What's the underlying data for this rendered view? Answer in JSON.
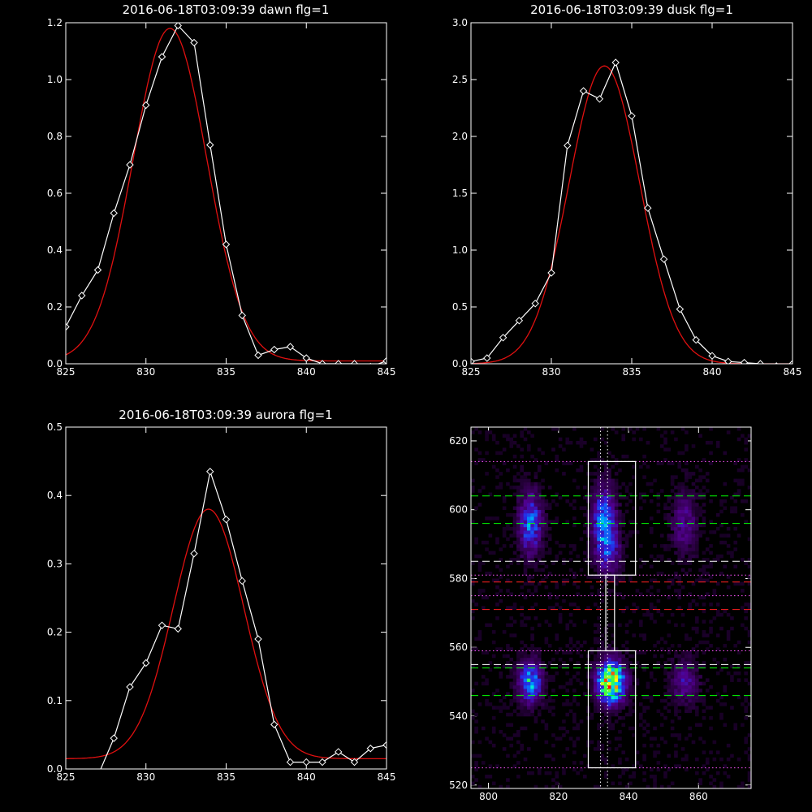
{
  "chart_data": [
    {
      "type": "line",
      "title": "2016-06-18T03:09:39 dawn flg=1",
      "xlim": [
        825,
        845
      ],
      "ylim": [
        0,
        1.2
      ],
      "xticks": [
        "825",
        "830",
        "835",
        "840",
        "845"
      ],
      "yticks": [
        "0.0",
        "0.2",
        "0.4",
        "0.6",
        "0.8",
        "1.0",
        "1.2"
      ],
      "series": [
        {
          "style": "white-line-diamonds",
          "x": [
            825,
            826,
            827,
            828,
            829,
            830,
            831,
            832,
            833,
            834,
            835,
            836,
            837,
            838,
            839,
            840,
            841,
            842,
            843,
            844,
            845
          ],
          "y": [
            0.13,
            0.24,
            0.33,
            0.53,
            0.7,
            0.91,
            1.08,
            1.19,
            1.13,
            0.77,
            0.42,
            0.17,
            0.03,
            0.05,
            0.06,
            0.02,
            0.0,
            0.0,
            0.0,
            -0.01,
            0.01
          ]
        },
        {
          "style": "red-gaussian-fit",
          "amp": 1.17,
          "center": 831.5,
          "sigma": 2.3,
          "baseline": 0.01
        }
      ]
    },
    {
      "type": "line",
      "title": "2016-06-18T03:09:39 dusk flg=1",
      "xlim": [
        825,
        845
      ],
      "ylim": [
        0,
        3.0
      ],
      "xticks": [
        "825",
        "830",
        "835",
        "840",
        "845"
      ],
      "yticks": [
        "0.0",
        "0.5",
        "1.0",
        "1.5",
        "2.0",
        "2.5",
        "3.0"
      ],
      "series": [
        {
          "style": "white-line-diamonds",
          "x": [
            825,
            826,
            827,
            828,
            829,
            830,
            831,
            832,
            833,
            834,
            835,
            836,
            837,
            838,
            839,
            840,
            841,
            842,
            843,
            844,
            845
          ],
          "y": [
            0.02,
            0.05,
            0.23,
            0.38,
            0.53,
            0.8,
            1.92,
            2.4,
            2.33,
            2.65,
            2.18,
            1.37,
            0.92,
            0.48,
            0.21,
            0.07,
            0.02,
            0.01,
            0.0,
            -0.02,
            0.0
          ]
        },
        {
          "style": "red-gaussian-fit",
          "amp": 2.62,
          "center": 833.3,
          "sigma": 2.2,
          "baseline": 0.0
        }
      ]
    },
    {
      "type": "line",
      "title": "2016-06-18T03:09:39 aurora flg=1",
      "xlim": [
        825,
        845
      ],
      "ylim": [
        0,
        0.5
      ],
      "xticks": [
        "825",
        "830",
        "835",
        "840",
        "845"
      ],
      "yticks": [
        "0.0",
        "0.1",
        "0.2",
        "0.3",
        "0.4",
        "0.5"
      ],
      "series": [
        {
          "style": "white-line-diamonds",
          "x": [
            826,
            827,
            828,
            829,
            830,
            831,
            832,
            833,
            834,
            835,
            836,
            837,
            838,
            839,
            840,
            841,
            842,
            843,
            844,
            845
          ],
          "y": [
            -0.01,
            -0.01,
            0.045,
            0.12,
            0.155,
            0.21,
            0.205,
            0.315,
            0.435,
            0.365,
            0.275,
            0.19,
            0.065,
            0.01,
            0.01,
            0.01,
            0.025,
            0.01,
            0.03,
            0.035
          ]
        },
        {
          "style": "red-gaussian-fit",
          "amp": 0.365,
          "center": 833.9,
          "sigma": 2.2,
          "baseline": 0.015
        }
      ]
    },
    {
      "type": "heatmap",
      "xlim": [
        795,
        875
      ],
      "ylim": [
        519,
        624
      ],
      "xticks": [
        "800",
        "820",
        "840",
        "860"
      ],
      "yticks": [
        "520",
        "540",
        "560",
        "580",
        "600",
        "620"
      ],
      "blobs": [
        {
          "x": 812,
          "y": 596,
          "sx": 2.2,
          "sy": 6,
          "amp": 0.45
        },
        {
          "x": 833,
          "y": 596,
          "sx": 2.2,
          "sy": 7,
          "amp": 0.5
        },
        {
          "x": 856,
          "y": 596,
          "sx": 2.5,
          "sy": 6,
          "amp": 0.22
        },
        {
          "x": 812,
          "y": 550,
          "sx": 2.2,
          "sy": 4,
          "amp": 0.55
        },
        {
          "x": 835,
          "y": 550,
          "sx": 2.6,
          "sy": 4,
          "amp": 1.0
        },
        {
          "x": 856,
          "y": 550,
          "sx": 2.5,
          "sy": 4,
          "amp": 0.25
        },
        {
          "x": 835,
          "y": 588,
          "sx": 2,
          "sy": 4,
          "amp": 0.25
        }
      ],
      "boxes": [
        {
          "x0": 828.5,
          "x1": 842,
          "y0": 581,
          "y1": 614
        },
        {
          "x0": 828.5,
          "x1": 842,
          "y0": 525,
          "y1": 559
        },
        {
          "x0": 833.5,
          "x1": 836,
          "y0": 559,
          "y1": 581
        }
      ],
      "hlines": [
        {
          "y": 614,
          "color": "#ff55ff",
          "dash": "dot"
        },
        {
          "y": 604,
          "color": "#00ff00",
          "dash": "long"
        },
        {
          "y": 596,
          "color": "#00ff00",
          "dash": "long"
        },
        {
          "y": 585,
          "color": "#ffffff",
          "dash": "long"
        },
        {
          "y": 581,
          "color": "#ff55ff",
          "dash": "dot"
        },
        {
          "y": 579,
          "color": "#ff2020",
          "dash": "long"
        },
        {
          "y": 575,
          "color": "#ff55ff",
          "dash": "dot"
        },
        {
          "y": 571,
          "color": "#ff2020",
          "dash": "long"
        },
        {
          "y": 559,
          "color": "#ff55ff",
          "dash": "dot"
        },
        {
          "y": 555,
          "color": "#ffffff",
          "dash": "long"
        },
        {
          "y": 554,
          "color": "#00ff00",
          "dash": "long"
        },
        {
          "y": 546,
          "color": "#00ff00",
          "dash": "long"
        },
        {
          "y": 525,
          "color": "#ff55ff",
          "dash": "dot"
        }
      ],
      "vlines": [
        {
          "x": 832,
          "color": "#ffffff",
          "dash": "dot"
        },
        {
          "x": 834,
          "color": "#ffffff",
          "dash": "dot"
        }
      ]
    }
  ]
}
